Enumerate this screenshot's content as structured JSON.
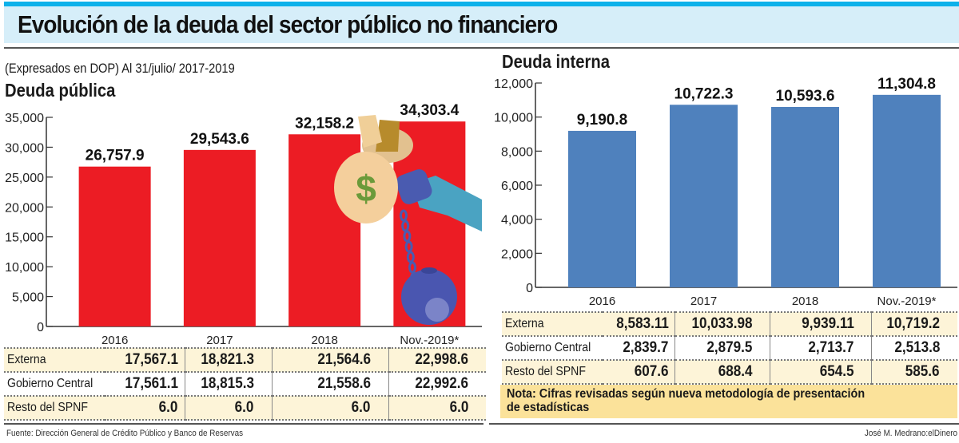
{
  "header": {
    "title": "Evolución de la deuda del sector público no financiero",
    "subtitle": "(Expresados en DOP) Al 31/julio/ 2017-2019"
  },
  "colors": {
    "title_band": "#d6eef9",
    "title_accent": "#0db1ea",
    "deuda_publica_bar": "#ec1c24",
    "deuda_interna_bar": "#4f81bd",
    "table_shade": "#fdf4d8",
    "note_bg": "#fbe29a"
  },
  "chart_data": [
    {
      "type": "bar",
      "title": "Deuda pública",
      "categories": [
        "2016",
        "2017",
        "2018",
        "Nov.-2019*"
      ],
      "values": [
        26757.9,
        29543.6,
        32158.2,
        34303.4
      ],
      "value_labels": [
        "26,757.9",
        "29,543.6",
        "32,158.2",
        "34,303.4"
      ],
      "ylim": [
        0,
        35000
      ],
      "yticks": [
        0,
        5000,
        10000,
        15000,
        20000,
        25000,
        30000,
        35000
      ],
      "ytick_labels": [
        "0",
        "5,000",
        "10,000",
        "15,000",
        "20,000",
        "25,000",
        "30,000",
        "35,000"
      ],
      "xlabel": "",
      "ylabel": "",
      "grid": false,
      "illustration": "money-bag-ball-and-chain",
      "table": {
        "rows": [
          {
            "label": "Externa",
            "values": [
              "17,567.1",
              "18,821.3",
              "21,564.6",
              "22,998.6"
            ]
          },
          {
            "label": "Gobierno Central",
            "values": [
              "17,561.1",
              "18,815.3",
              "21,558.6",
              "22,992.6"
            ]
          },
          {
            "label": "Resto del SPNF",
            "values": [
              "6.0",
              "6.0",
              "6.0",
              "6.0"
            ]
          }
        ]
      }
    },
    {
      "type": "bar",
      "title": "Deuda interna",
      "categories": [
        "2016",
        "2017",
        "2018",
        "Nov.-2019*"
      ],
      "values": [
        9190.8,
        10722.3,
        10593.6,
        11304.8
      ],
      "value_labels": [
        "9,190.8",
        "10,722.3",
        "10,593.6",
        "11,304.8"
      ],
      "ylim": [
        0,
        12000
      ],
      "yticks": [
        0,
        2000,
        4000,
        6000,
        8000,
        10000,
        12000
      ],
      "ytick_labels": [
        "0",
        "2,000",
        "4,000",
        "6,000",
        "8,000",
        "10,000",
        "12,000"
      ],
      "xlabel": "",
      "ylabel": "",
      "grid": false,
      "table": {
        "rows": [
          {
            "label": "Externa",
            "values": [
              "8,583.11",
              "10,033.98",
              "9,939.11",
              "10,719.2"
            ]
          },
          {
            "label": "Gobierno Central",
            "values": [
              "2,839.7",
              "2,879.5",
              "2,713.7",
              "2,513.8"
            ]
          },
          {
            "label": "Resto del SPNF",
            "values": [
              "607.6",
              "688.4",
              "654.5",
              "585.6"
            ]
          }
        ]
      }
    }
  ],
  "note": {
    "line1": "Nota: Cifras revisadas según nueva metodología de presentación",
    "line2": "de estadísticas"
  },
  "footer": {
    "source": "Fuente: Dirección General de Crédito Público y Banco de Reservas",
    "credit": "José M. Medrano:elDinero"
  }
}
